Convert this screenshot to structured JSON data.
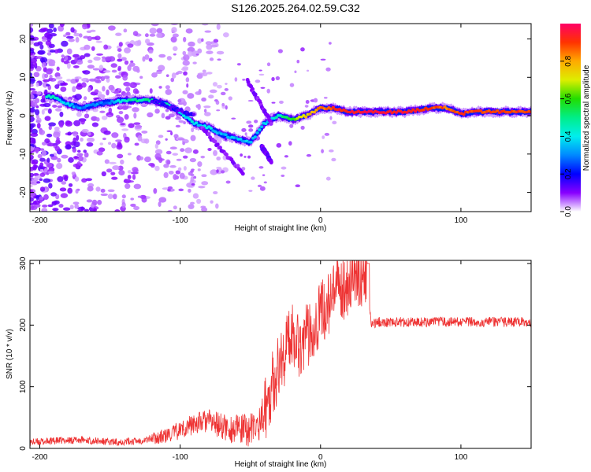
{
  "title": "S126.2025.264.02.59.C32",
  "chart_data": [
    {
      "type": "heatmap",
      "title": "S126.2025.264.02.59.C32",
      "xlabel": "Height of straight line (km)",
      "ylabel": "Frequency (Hz)",
      "xlim": [
        -207,
        150
      ],
      "ylim": [
        -25,
        24
      ],
      "xticks": [
        -200,
        -100,
        0,
        100
      ],
      "yticks": [
        -20,
        -10,
        0,
        10,
        20
      ],
      "colorbar": {
        "label": "Normalized spectral amplitude",
        "range": [
          0,
          1
        ],
        "ticks": [
          0.0,
          0.2,
          0.4,
          0.6,
          0.8
        ],
        "tick_labels": [
          "0.0",
          "0.2",
          "0.4",
          "0.6",
          "0.8"
        ]
      },
      "ridge": {
        "x": [
          -190,
          -180,
          -170,
          -160,
          -150,
          -140,
          -120,
          -110,
          -100,
          -90,
          -80,
          -70,
          -60,
          -50,
          -40,
          -30,
          -20,
          -10,
          0,
          10,
          20,
          40,
          60,
          80,
          90,
          100,
          110,
          120,
          150
        ],
        "freq": [
          5,
          3,
          2,
          3,
          3.5,
          4,
          4,
          3,
          1,
          -2,
          -3,
          -5,
          -6,
          -7,
          -2,
          0,
          -1,
          0,
          2,
          2,
          1,
          1,
          1,
          2,
          2,
          0.5,
          1,
          1,
          1
        ],
        "amplitude": [
          0.45,
          0.35,
          0.3,
          0.3,
          0.3,
          0.45,
          0.5,
          0.45,
          0.4,
          0.4,
          0.38,
          0.35,
          0.35,
          0.35,
          0.35,
          0.45,
          0.6,
          0.75,
          0.85,
          0.9,
          0.95,
          0.95,
          0.95,
          0.9,
          0.85,
          0.9,
          0.9,
          0.9,
          0.9
        ]
      }
    },
    {
      "type": "line",
      "xlabel": "Height of straight line (km)",
      "ylabel": "SNR (10 * v/v)",
      "xlim": [
        -207,
        150
      ],
      "ylim": [
        0,
        305
      ],
      "xticks": [
        -200,
        -100,
        0,
        100
      ],
      "yticks": [
        0,
        100,
        200,
        300
      ],
      "series": [
        {
          "name": "SNR",
          "color": "#ee3333",
          "x": [
            -207,
            -190,
            -170,
            -150,
            -130,
            -110,
            -100,
            -90,
            -80,
            -70,
            -60,
            -50,
            -45,
            -40,
            -35,
            -30,
            -25,
            -20,
            -15,
            -10,
            -5,
            0,
            5,
            10,
            15,
            20,
            25,
            30,
            34,
            35,
            36,
            40,
            60,
            80,
            100,
            120,
            150
          ],
          "values": [
            10,
            12,
            14,
            10,
            12,
            20,
            30,
            40,
            45,
            35,
            30,
            30,
            35,
            60,
            100,
            130,
            160,
            190,
            170,
            180,
            200,
            220,
            230,
            250,
            260,
            270,
            280,
            285,
            290,
            230,
            200,
            205,
            205,
            205,
            205,
            205,
            205
          ]
        }
      ]
    }
  ]
}
